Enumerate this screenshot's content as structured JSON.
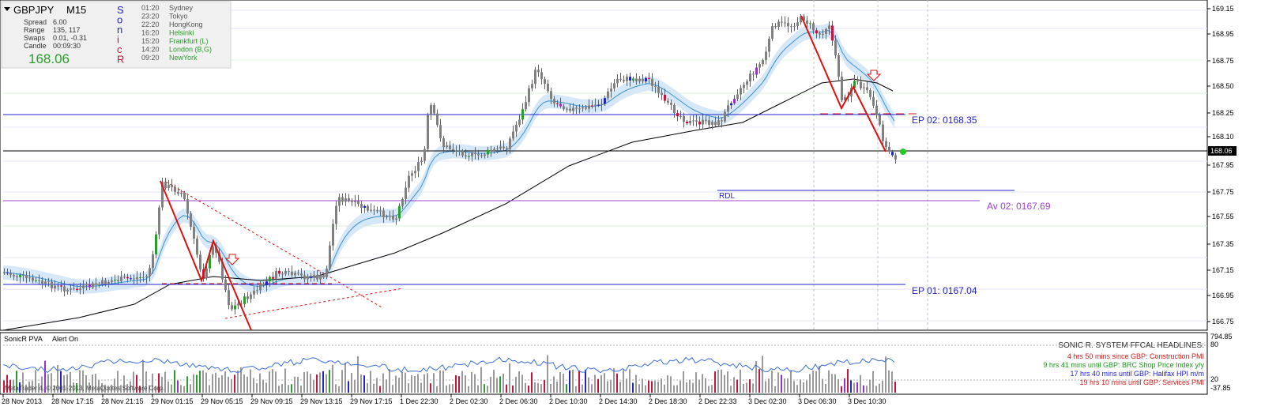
{
  "window": {
    "symbol": "GBPJPY",
    "timeframe": "M15",
    "spread_label": "Spread",
    "spread": "6.00",
    "range_label": "Range",
    "range": "135, 117",
    "swaps_label": "Swaps",
    "swaps": "0.01, -0.31",
    "candle_label": "Candle",
    "candle": "00:09:30",
    "price": "168.06",
    "brand_letters": [
      "S",
      "o",
      "n",
      "i",
      "c",
      "R"
    ],
    "sessions": [
      {
        "time": "01:20",
        "name": "Sydney",
        "color": "#555555"
      },
      {
        "time": "23:20",
        "name": "Tokyo",
        "color": "#555555"
      },
      {
        "time": "22:20",
        "name": "HongKong",
        "color": "#555555"
      },
      {
        "time": "16:20",
        "name": "Helsinki",
        "color": "#2a9d2a"
      },
      {
        "time": "15:20",
        "name": "Frankfurt  (L)",
        "color": "#2a9d2a"
      },
      {
        "time": "14:20",
        "name": "London  (B,G)",
        "color": "#2a9d2a"
      },
      {
        "time": "09:20",
        "name": "NewYork",
        "color": "#2a9d2a"
      }
    ]
  },
  "price_scale": [
    "169.15",
    "168.95",
    "168.75",
    "168.50",
    "168.25",
    "168.10",
    "167.95",
    "167.75",
    "167.55",
    "167.35",
    "167.15",
    "166.95",
    "166.75"
  ],
  "current_price_tag": "168.06",
  "levels": {
    "ep02_label": "EP 02:  0168.35",
    "ep01_label": "EP 01:  0167.04",
    "av02_label": "Av 02:  0167.69",
    "rdl_label": "RDL"
  },
  "indicator": {
    "name": "SonicR PVA",
    "alert": "Alert On",
    "scale": [
      "794.85",
      "80",
      "20",
      "-37.85"
    ],
    "headlines_title": "SONIC R. SYSTEM  FFCAL HEADLINES:",
    "headlines": [
      {
        "text": "4 hrs 50 mins since GBP: Construction PMI",
        "color": "#d02020"
      },
      {
        "text": "9 hrs 41 mins until GBP: BRC Shop Price Index y/y",
        "color": "#1a9a1a"
      },
      {
        "text": "17 hrs 40 mins until GBP: Halifax HPI m/m",
        "color": "#2222cc"
      },
      {
        "text": "19 hrs 10 mins until GBP: Services PMI",
        "color": "#d02020"
      }
    ],
    "copyright": "MetaTrader 4, © 2001-2013, MetaQuotes Software Corp."
  },
  "time_axis": [
    "28 Nov 2013",
    "28 Nov 17:15",
    "28 Nov 21:15",
    "29 Nov 01:15",
    "29 Nov 05:15",
    "29 Nov 09:15",
    "29 Nov 13:15",
    "29 Nov 17:15",
    "1 Dec 22:30",
    "2 Dec 02:30",
    "2 Dec 06:30",
    "2 Dec 10:30",
    "2 Dec 14:30",
    "2 Dec 18:30",
    "2 Dec 22:33",
    "3 Dec 02:30",
    "3 Dec 06:30",
    "3 Dec 10:30"
  ],
  "colors": {
    "bull": "#2a9d2a",
    "bear": "#c8143c",
    "neutral": "#808080",
    "climax_up": "#2222cc",
    "climax_dn": "#9b30d0",
    "ep_line": "#2222cc",
    "av_line": "#a040d0",
    "zigzag": "#e01010",
    "ema_band": "#b8d8f5",
    "ema_line": "#3a8fd0",
    "sma": "#000000"
  }
}
